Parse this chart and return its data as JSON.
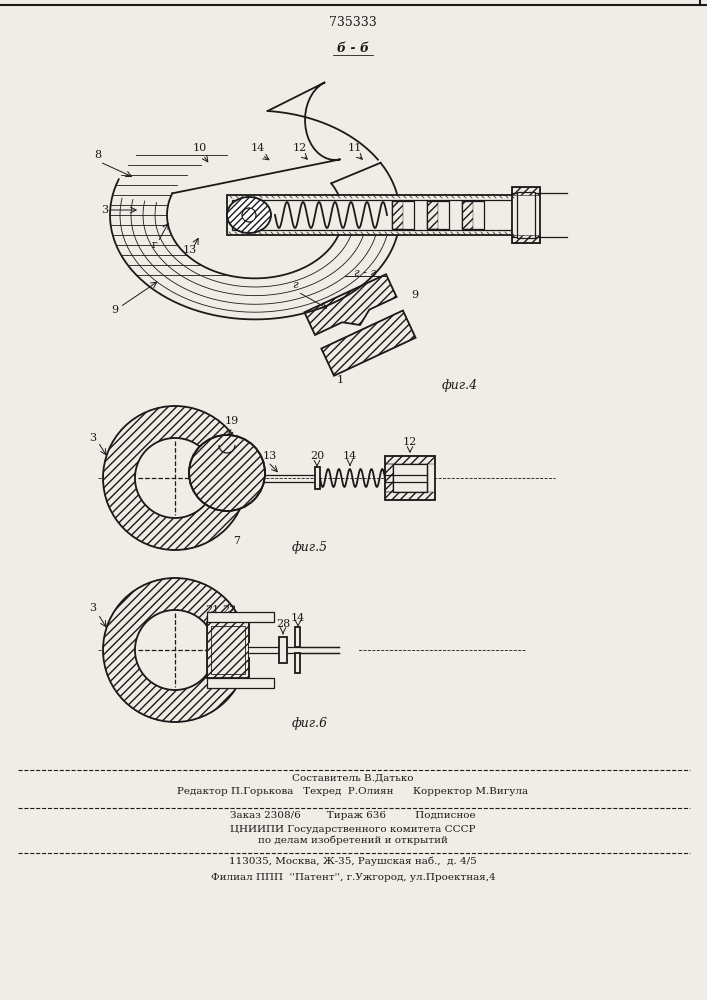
{
  "patent_number": "735333",
  "bg_color": "#f0ede6",
  "line_color": "#1a1a1a",
  "fig4_label": "б - б",
  "fig4_caption": "фиг.4",
  "fig5_caption": "фиг.5",
  "fig6_caption": "фиг.6",
  "cross_section_label": "г - г",
  "footer_line1": "Составитель В.Датько",
  "footer_line2": "Редактор П.Горькова   Техред  Р.Олиян      Корректор М.Вигула",
  "footer_line3": "Заказ 2308/6        Тираж 636         Подписное",
  "footer_line4": "ЦНИИПИ Государственного комитета СССР",
  "footer_line5": "по делам изобретений и открытий",
  "footer_line6": "113035, Москва, Ж-35, Раушская наб.,  д. 4/5",
  "footer_line7": "Филиал ППП  ''Патент'', г.Ужгород, ул.Проектная,4"
}
